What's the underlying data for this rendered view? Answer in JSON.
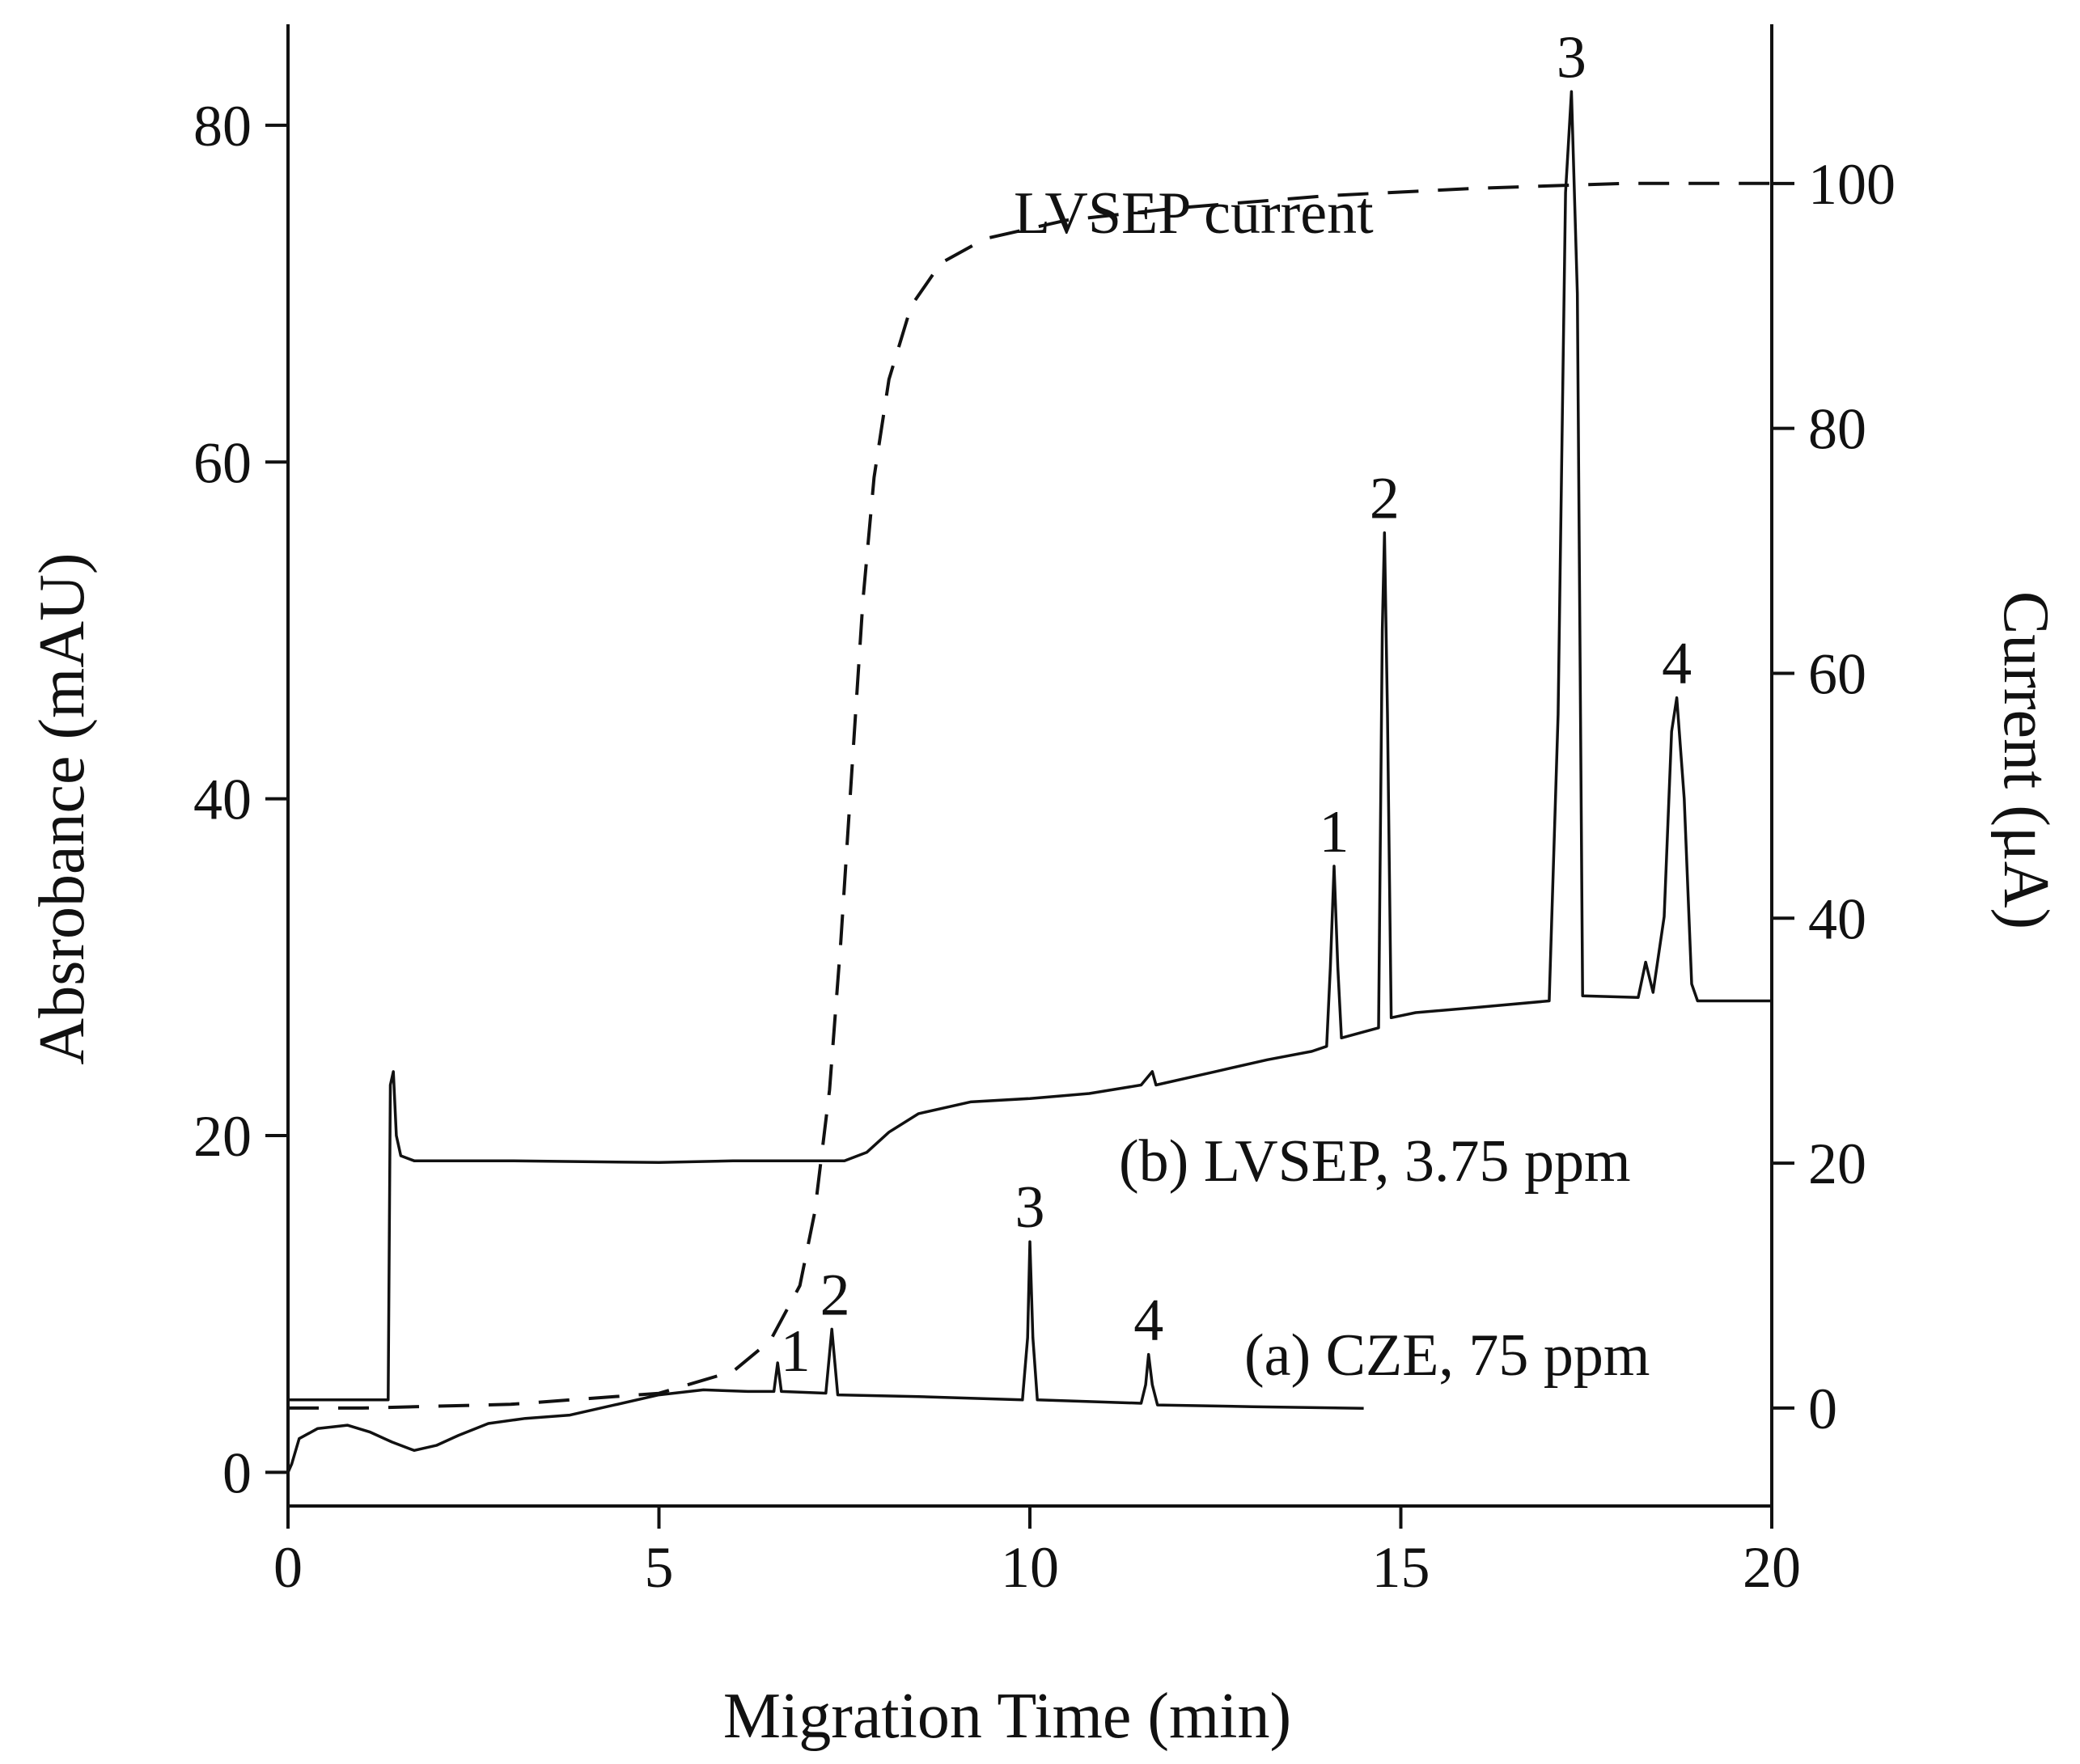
{
  "chart_data": {
    "type": "line",
    "xlabel": "Migration Time (min)",
    "ylabel_left": "Absrobance (mAU)",
    "ylabel_right": "Current (μA)",
    "xlim": [
      0,
      20
    ],
    "ylim_left": [
      -2,
      86
    ],
    "ylim_right": [
      -8,
      113
    ],
    "x_ticks": [
      0,
      5,
      10,
      15,
      20
    ],
    "y_left_ticks": [
      0,
      20,
      40,
      60,
      80
    ],
    "y_right_ticks": [
      0,
      20,
      40,
      60,
      80,
      100
    ],
    "annotations": {
      "current": "LVSEP current",
      "lvsep": "(b) LVSEP, 3.75 ppm",
      "cze": "(a) CZE, 75 ppm"
    },
    "series": [
      {
        "name": "(a) CZE, 75 ppm",
        "axis": "left",
        "style": "solid",
        "points": [
          [
            0,
            0
          ],
          [
            0.05,
            0.5
          ],
          [
            0.15,
            2.0
          ],
          [
            0.4,
            2.6
          ],
          [
            0.8,
            2.8
          ],
          [
            1.1,
            2.4
          ],
          [
            1.4,
            1.8
          ],
          [
            1.7,
            1.3
          ],
          [
            2.0,
            1.6
          ],
          [
            2.3,
            2.2
          ],
          [
            2.7,
            2.9
          ],
          [
            3.2,
            3.2
          ],
          [
            3.8,
            3.4
          ],
          [
            4.4,
            4.0
          ],
          [
            5.0,
            4.6
          ],
          [
            5.6,
            4.9
          ],
          [
            6.2,
            4.8
          ],
          [
            6.55,
            4.8
          ],
          [
            6.6,
            6.5
          ],
          [
            6.65,
            4.8
          ],
          [
            7.25,
            4.7
          ],
          [
            7.33,
            8.5
          ],
          [
            7.41,
            4.6
          ],
          [
            8.5,
            4.5
          ],
          [
            9.9,
            4.3
          ],
          [
            9.97,
            8.0
          ],
          [
            10.0,
            13.7
          ],
          [
            10.04,
            8.0
          ],
          [
            10.1,
            4.3
          ],
          [
            10.8,
            4.2
          ],
          [
            11.5,
            4.1
          ],
          [
            11.56,
            5.2
          ],
          [
            11.6,
            7.0
          ],
          [
            11.65,
            5.2
          ],
          [
            11.72,
            4.0
          ],
          [
            13.0,
            3.9
          ],
          [
            14.5,
            3.8
          ]
        ]
      },
      {
        "name": "(b) LVSEP, 3.75 ppm",
        "axis": "left",
        "style": "solid",
        "points": [
          [
            0,
            4.3
          ],
          [
            1.35,
            4.3
          ],
          [
            1.38,
            23.0
          ],
          [
            1.42,
            23.8
          ],
          [
            1.46,
            20.0
          ],
          [
            1.52,
            18.8
          ],
          [
            1.7,
            18.5
          ],
          [
            3.0,
            18.5
          ],
          [
            5.0,
            18.4
          ],
          [
            6.0,
            18.5
          ],
          [
            7.5,
            18.5
          ],
          [
            7.8,
            19.0
          ],
          [
            8.1,
            20.2
          ],
          [
            8.5,
            21.3
          ],
          [
            9.2,
            22.0
          ],
          [
            10.0,
            22.2
          ],
          [
            10.8,
            22.5
          ],
          [
            11.5,
            23.0
          ],
          [
            11.65,
            23.8
          ],
          [
            11.7,
            23.0
          ],
          [
            12.5,
            23.8
          ],
          [
            13.2,
            24.5
          ],
          [
            13.8,
            25.0
          ],
          [
            14.0,
            25.3
          ],
          [
            14.05,
            30.0
          ],
          [
            14.1,
            36.0
          ],
          [
            14.15,
            30.0
          ],
          [
            14.2,
            25.8
          ],
          [
            14.7,
            26.4
          ],
          [
            14.75,
            50.0
          ],
          [
            14.78,
            55.8
          ],
          [
            14.82,
            45.0
          ],
          [
            14.87,
            27.0
          ],
          [
            15.2,
            27.3
          ],
          [
            16.0,
            27.6
          ],
          [
            17.0,
            28.0
          ],
          [
            17.12,
            45.0
          ],
          [
            17.22,
            76.0
          ],
          [
            17.3,
            82.0
          ],
          [
            17.38,
            70.0
          ],
          [
            17.45,
            28.3
          ],
          [
            18.2,
            28.2
          ],
          [
            18.3,
            30.3
          ],
          [
            18.4,
            28.5
          ],
          [
            18.55,
            33.0
          ],
          [
            18.65,
            44.0
          ],
          [
            18.72,
            46.0
          ],
          [
            18.82,
            40.0
          ],
          [
            18.92,
            29.0
          ],
          [
            19.0,
            28.0
          ],
          [
            20,
            28.0
          ]
        ]
      },
      {
        "name": "LVSEP current",
        "axis": "right",
        "style": "dashed",
        "points": [
          [
            0,
            0
          ],
          [
            1,
            0
          ],
          [
            3,
            0.3
          ],
          [
            5,
            1.2
          ],
          [
            6,
            3.0
          ],
          [
            6.5,
            5.5
          ],
          [
            6.9,
            10.0
          ],
          [
            7.1,
            16.0
          ],
          [
            7.3,
            26.0
          ],
          [
            7.45,
            38.0
          ],
          [
            7.6,
            52.0
          ],
          [
            7.75,
            66.0
          ],
          [
            7.9,
            76.0
          ],
          [
            8.1,
            84.0
          ],
          [
            8.4,
            90.0
          ],
          [
            8.8,
            93.5
          ],
          [
            9.4,
            95.5
          ],
          [
            10.5,
            97.0
          ],
          [
            12,
            98.0
          ],
          [
            14,
            99.0
          ],
          [
            16,
            99.6
          ],
          [
            18,
            100.0
          ],
          [
            20,
            100.0
          ]
        ]
      }
    ],
    "peak_labels": [
      {
        "text": "1",
        "series": "CZE",
        "x": 6.6
      },
      {
        "text": "2",
        "series": "CZE",
        "x": 7.33
      },
      {
        "text": "3",
        "series": "CZE",
        "x": 10.0
      },
      {
        "text": "4",
        "series": "CZE",
        "x": 11.6
      },
      {
        "text": "1",
        "series": "LVSEP",
        "x": 14.1
      },
      {
        "text": "2",
        "series": "LVSEP",
        "x": 14.78
      },
      {
        "text": "3",
        "series": "LVSEP",
        "x": 17.3
      },
      {
        "text": "4",
        "series": "LVSEP",
        "x": 18.72
      }
    ]
  }
}
